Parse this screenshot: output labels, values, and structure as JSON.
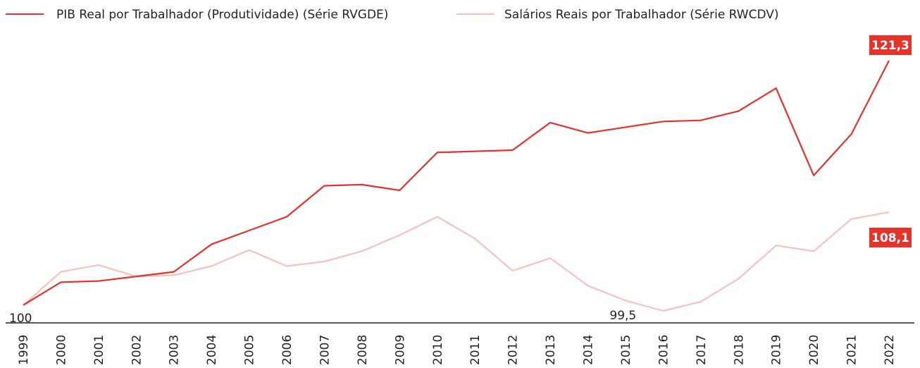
{
  "chart_data": {
    "type": "line",
    "categories": [
      "1999",
      "2000",
      "2001",
      "2002",
      "2003",
      "2004",
      "2005",
      "2006",
      "2007",
      "2008",
      "2009",
      "2010",
      "2011",
      "2012",
      "2013",
      "2014",
      "2015",
      "2016",
      "2017",
      "2018",
      "2019",
      "2020",
      "2021",
      "2022"
    ],
    "series": [
      {
        "name": "PIB Real por Trabalhador (Produtividade) (Série RVGDE)",
        "color": "#e3312d",
        "values": [
          100,
          102.0,
          102.1,
          102.5,
          102.9,
          105.3,
          106.5,
          107.7,
          110.4,
          110.5,
          110.0,
          113.3,
          113.4,
          113.5,
          115.9,
          115.0,
          115.5,
          116.0,
          116.1,
          116.9,
          118.9,
          111.3,
          114.9,
          121.3
        ],
        "value_labels": [
          "100",
          null,
          null,
          null,
          null,
          null,
          null,
          null,
          null,
          null,
          null,
          null,
          null,
          null,
          null,
          null,
          null,
          null,
          null,
          null,
          null,
          null,
          null,
          "121,3"
        ]
      },
      {
        "name": "Salários Reais por Trabalhador (Série RWCDV)",
        "color": "#f7c1bd",
        "values": [
          100,
          102.9,
          103.5,
          102.5,
          102.6,
          103.4,
          104.8,
          103.4,
          103.8,
          104.7,
          106.1,
          107.7,
          105.8,
          103.0,
          104.1,
          101.7,
          100.4,
          99.5,
          100.3,
          102.3,
          105.2,
          104.7,
          107.5,
          108.1
        ],
        "value_labels": [
          null,
          null,
          null,
          null,
          null,
          null,
          null,
          null,
          null,
          null,
          null,
          null,
          null,
          null,
          null,
          null,
          null,
          "99,5",
          null,
          null,
          null,
          null,
          null,
          "108,1"
        ]
      }
    ]
  }
}
